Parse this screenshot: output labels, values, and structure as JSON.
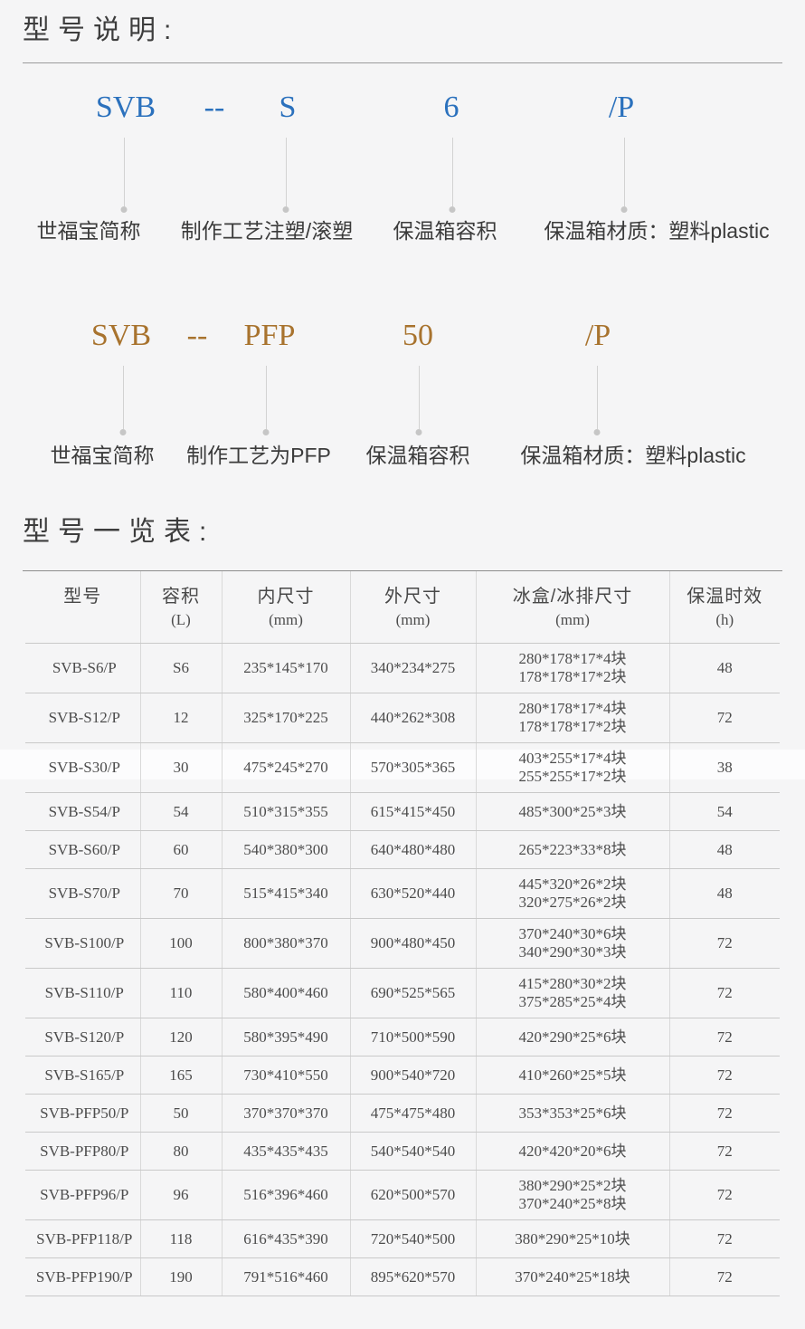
{
  "titles": {
    "section1": "型号说明:",
    "section2": "型号一览表:"
  },
  "accent_colors": {
    "injection_code_blue": "#2b71bd",
    "pfp_code_brown": "#a8732e"
  },
  "breakdowns": [
    {
      "color": "#2b71bd",
      "parts": [
        {
          "code": "SVB",
          "label": "世福宝简称"
        },
        {
          "code": "--"
        },
        {
          "code": "S",
          "label": "制作工艺注塑/滚塑"
        },
        {
          "code": "6",
          "label": "保温箱容积"
        },
        {
          "code": "/P",
          "label": "保温箱材质：塑料plastic"
        }
      ]
    },
    {
      "color": "#a8732e",
      "parts": [
        {
          "code": "SVB",
          "label": "世福宝简称"
        },
        {
          "code": "--"
        },
        {
          "code": "PFP",
          "label": "制作工艺为PFP"
        },
        {
          "code": "50",
          "label": "保温箱容积"
        },
        {
          "code": "/P",
          "label": "保温箱材质：塑料plastic"
        }
      ]
    }
  ],
  "table": {
    "headers": [
      {
        "title": "型号",
        "unit": ""
      },
      {
        "title": "容积",
        "unit": "(L)"
      },
      {
        "title": "内尺寸",
        "unit": "(mm)"
      },
      {
        "title": "外尺寸",
        "unit": "(mm)"
      },
      {
        "title": "冰盒/冰排尺寸",
        "unit": "(mm)"
      },
      {
        "title": "保温时效",
        "unit": "(h)"
      }
    ],
    "rows": [
      {
        "model": "SVB-S6/P",
        "capacity": "S6",
        "inner": "235*145*170",
        "outer": "340*234*275",
        "ice": [
          "280*178*17*4块",
          "178*178*17*2块"
        ],
        "hours": "48"
      },
      {
        "model": "SVB-S12/P",
        "capacity": "12",
        "inner": "325*170*225",
        "outer": "440*262*308",
        "ice": [
          "280*178*17*4块",
          "178*178*17*2块"
        ],
        "hours": "72"
      },
      {
        "model": "SVB-S30/P",
        "capacity": "30",
        "inner": "475*245*270",
        "outer": "570*305*365",
        "ice": [
          "403*255*17*4块",
          "255*255*17*2块"
        ],
        "hours": "38"
      },
      {
        "model": "SVB-S54/P",
        "capacity": "54",
        "inner": "510*315*355",
        "outer": "615*415*450",
        "ice": [
          "485*300*25*3块"
        ],
        "hours": "54"
      },
      {
        "model": "SVB-S60/P",
        "capacity": "60",
        "inner": "540*380*300",
        "outer": "640*480*480",
        "ice": [
          "265*223*33*8块"
        ],
        "hours": "48"
      },
      {
        "model": "SVB-S70/P",
        "capacity": "70",
        "inner": "515*415*340",
        "outer": "630*520*440",
        "ice": [
          "445*320*26*2块",
          "320*275*26*2块"
        ],
        "hours": "48"
      },
      {
        "model": "SVB-S100/P",
        "capacity": "100",
        "inner": "800*380*370",
        "outer": "900*480*450",
        "ice": [
          "370*240*30*6块",
          "340*290*30*3块"
        ],
        "hours": "72"
      },
      {
        "model": "SVB-S110/P",
        "capacity": "110",
        "inner": "580*400*460",
        "outer": "690*525*565",
        "ice": [
          "415*280*30*2块",
          "375*285*25*4块"
        ],
        "hours": "72"
      },
      {
        "model": "SVB-S120/P",
        "capacity": "120",
        "inner": "580*395*490",
        "outer": "710*500*590",
        "ice": [
          "420*290*25*6块"
        ],
        "hours": "72"
      },
      {
        "model": "SVB-S165/P",
        "capacity": "165",
        "inner": "730*410*550",
        "outer": "900*540*720",
        "ice": [
          "410*260*25*5块"
        ],
        "hours": "72"
      },
      {
        "model": "SVB-PFP50/P",
        "capacity": "50",
        "inner": "370*370*370",
        "outer": "475*475*480",
        "ice": [
          "353*353*25*6块"
        ],
        "hours": "72"
      },
      {
        "model": "SVB-PFP80/P",
        "capacity": "80",
        "inner": "435*435*435",
        "outer": "540*540*540",
        "ice": [
          "420*420*20*6块"
        ],
        "hours": "72"
      },
      {
        "model": "SVB-PFP96/P",
        "capacity": "96",
        "inner": "516*396*460",
        "outer": "620*500*570",
        "ice": [
          "380*290*25*2块",
          "370*240*25*8块"
        ],
        "hours": "72"
      },
      {
        "model": "SVB-PFP118/P",
        "capacity": "118",
        "inner": "616*435*390",
        "outer": "720*540*500",
        "ice": [
          "380*290*25*10块"
        ],
        "hours": "72"
      },
      {
        "model": "SVB-PFP190/P",
        "capacity": "190",
        "inner": "791*516*460",
        "outer": "895*620*570",
        "ice": [
          "370*240*25*18块"
        ],
        "hours": "72"
      }
    ]
  }
}
